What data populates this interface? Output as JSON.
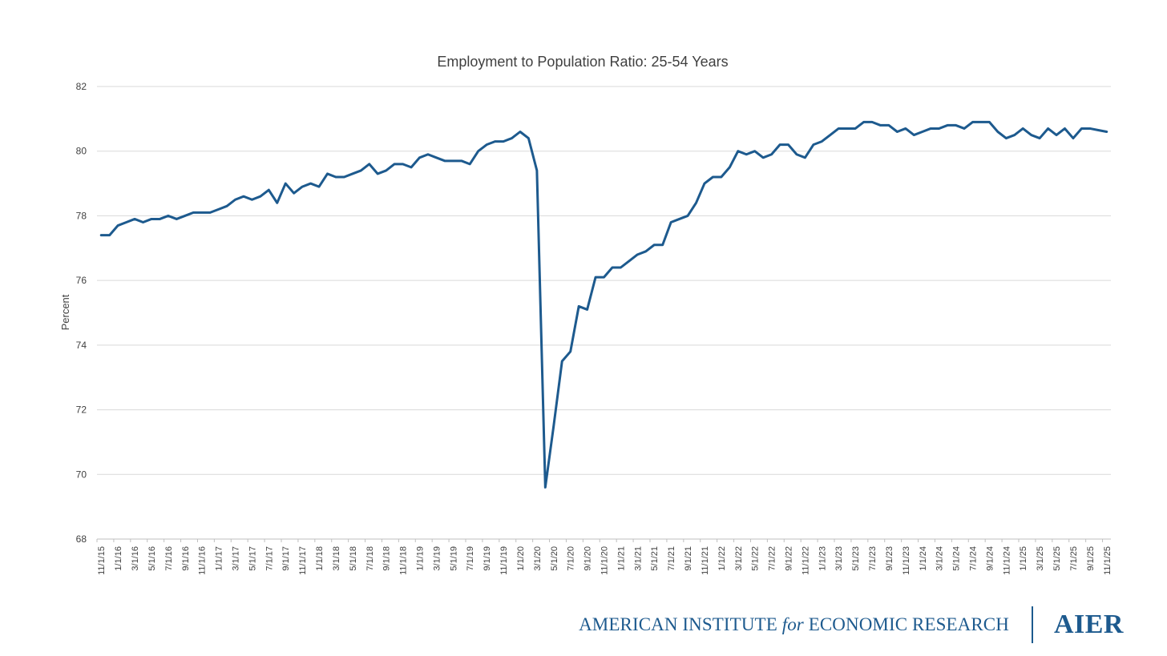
{
  "chart_data": {
    "type": "line",
    "title": "Employment to Population Ratio: 25-54 Years",
    "xlabel": "",
    "ylabel": "Percent",
    "ylim": [
      68,
      82
    ],
    "yticks": [
      68,
      70,
      72,
      74,
      76,
      78,
      80,
      82
    ],
    "grid": true,
    "legend": "none",
    "color": "#1d5a8e",
    "x_tick_labels": [
      "11/1/15",
      "1/1/16",
      "3/1/16",
      "5/1/16",
      "7/1/16",
      "9/1/16",
      "11/1/16",
      "1/1/17",
      "3/1/17",
      "5/1/17",
      "7/1/17",
      "9/1/17",
      "11/1/17",
      "1/1/18",
      "3/1/18",
      "5/1/18",
      "7/1/18",
      "9/1/18",
      "11/1/18",
      "1/1/19",
      "3/1/19",
      "5/1/19",
      "7/1/19",
      "9/1/19",
      "11/1/19",
      "1/1/20",
      "3/1/20",
      "5/1/20",
      "7/1/20",
      "9/1/20",
      "11/1/20",
      "1/1/21",
      "3/1/21",
      "5/1/21",
      "7/1/21",
      "9/1/21",
      "11/1/21",
      "1/1/22",
      "3/1/22",
      "5/1/22",
      "7/1/22",
      "9/1/22",
      "11/1/22",
      "1/1/23",
      "3/1/23",
      "5/1/23",
      "7/1/23",
      "9/1/23",
      "11/1/23",
      "1/1/24",
      "3/1/24",
      "5/1/24",
      "7/1/24",
      "9/1/24",
      "11/1/24",
      "1/1/25",
      "3/1/25",
      "5/1/25",
      "7/1/25",
      "9/1/25",
      "11/1/25"
    ],
    "x_start": "2015-11",
    "x_end": "2025-11",
    "values": [
      77.4,
      77.4,
      77.7,
      77.8,
      77.9,
      77.8,
      77.9,
      77.9,
      78.0,
      77.9,
      78.0,
      78.1,
      78.1,
      78.1,
      78.2,
      78.3,
      78.5,
      78.6,
      78.5,
      78.6,
      78.8,
      78.4,
      79.0,
      78.7,
      78.9,
      79.0,
      78.9,
      79.3,
      79.2,
      79.2,
      79.3,
      79.4,
      79.6,
      79.3,
      79.4,
      79.6,
      79.6,
      79.5,
      79.8,
      79.9,
      79.8,
      79.7,
      79.7,
      79.7,
      79.6,
      80.0,
      80.2,
      80.3,
      80.3,
      80.4,
      80.6,
      80.4,
      79.4,
      69.6,
      71.5,
      73.5,
      73.8,
      75.2,
      75.1,
      76.1,
      76.1,
      76.4,
      76.4,
      76.6,
      76.8,
      76.9,
      77.1,
      77.1,
      77.8,
      77.9,
      78.0,
      78.4,
      79.0,
      79.2,
      79.2,
      79.5,
      80.0,
      79.9,
      80.0,
      79.8,
      79.9,
      80.2,
      80.2,
      79.9,
      79.8,
      80.2,
      80.3,
      80.5,
      80.7,
      80.7,
      80.7,
      80.9,
      80.9,
      80.8,
      80.8,
      80.6,
      80.7,
      80.5,
      80.6,
      80.7,
      80.7,
      80.8,
      80.8,
      80.7,
      80.9,
      80.9,
      80.9,
      80.6,
      80.4,
      80.5,
      80.7,
      80.5,
      80.4,
      80.7,
      80.5,
      80.7,
      80.4,
      80.7,
      80.7,
      80.65,
      80.6
    ]
  },
  "footer": {
    "org_part1": "AMERICAN INSTITUTE ",
    "org_part2": "for",
    "org_part3": " ECONOMIC RESEARCH",
    "logo": "AIER"
  }
}
